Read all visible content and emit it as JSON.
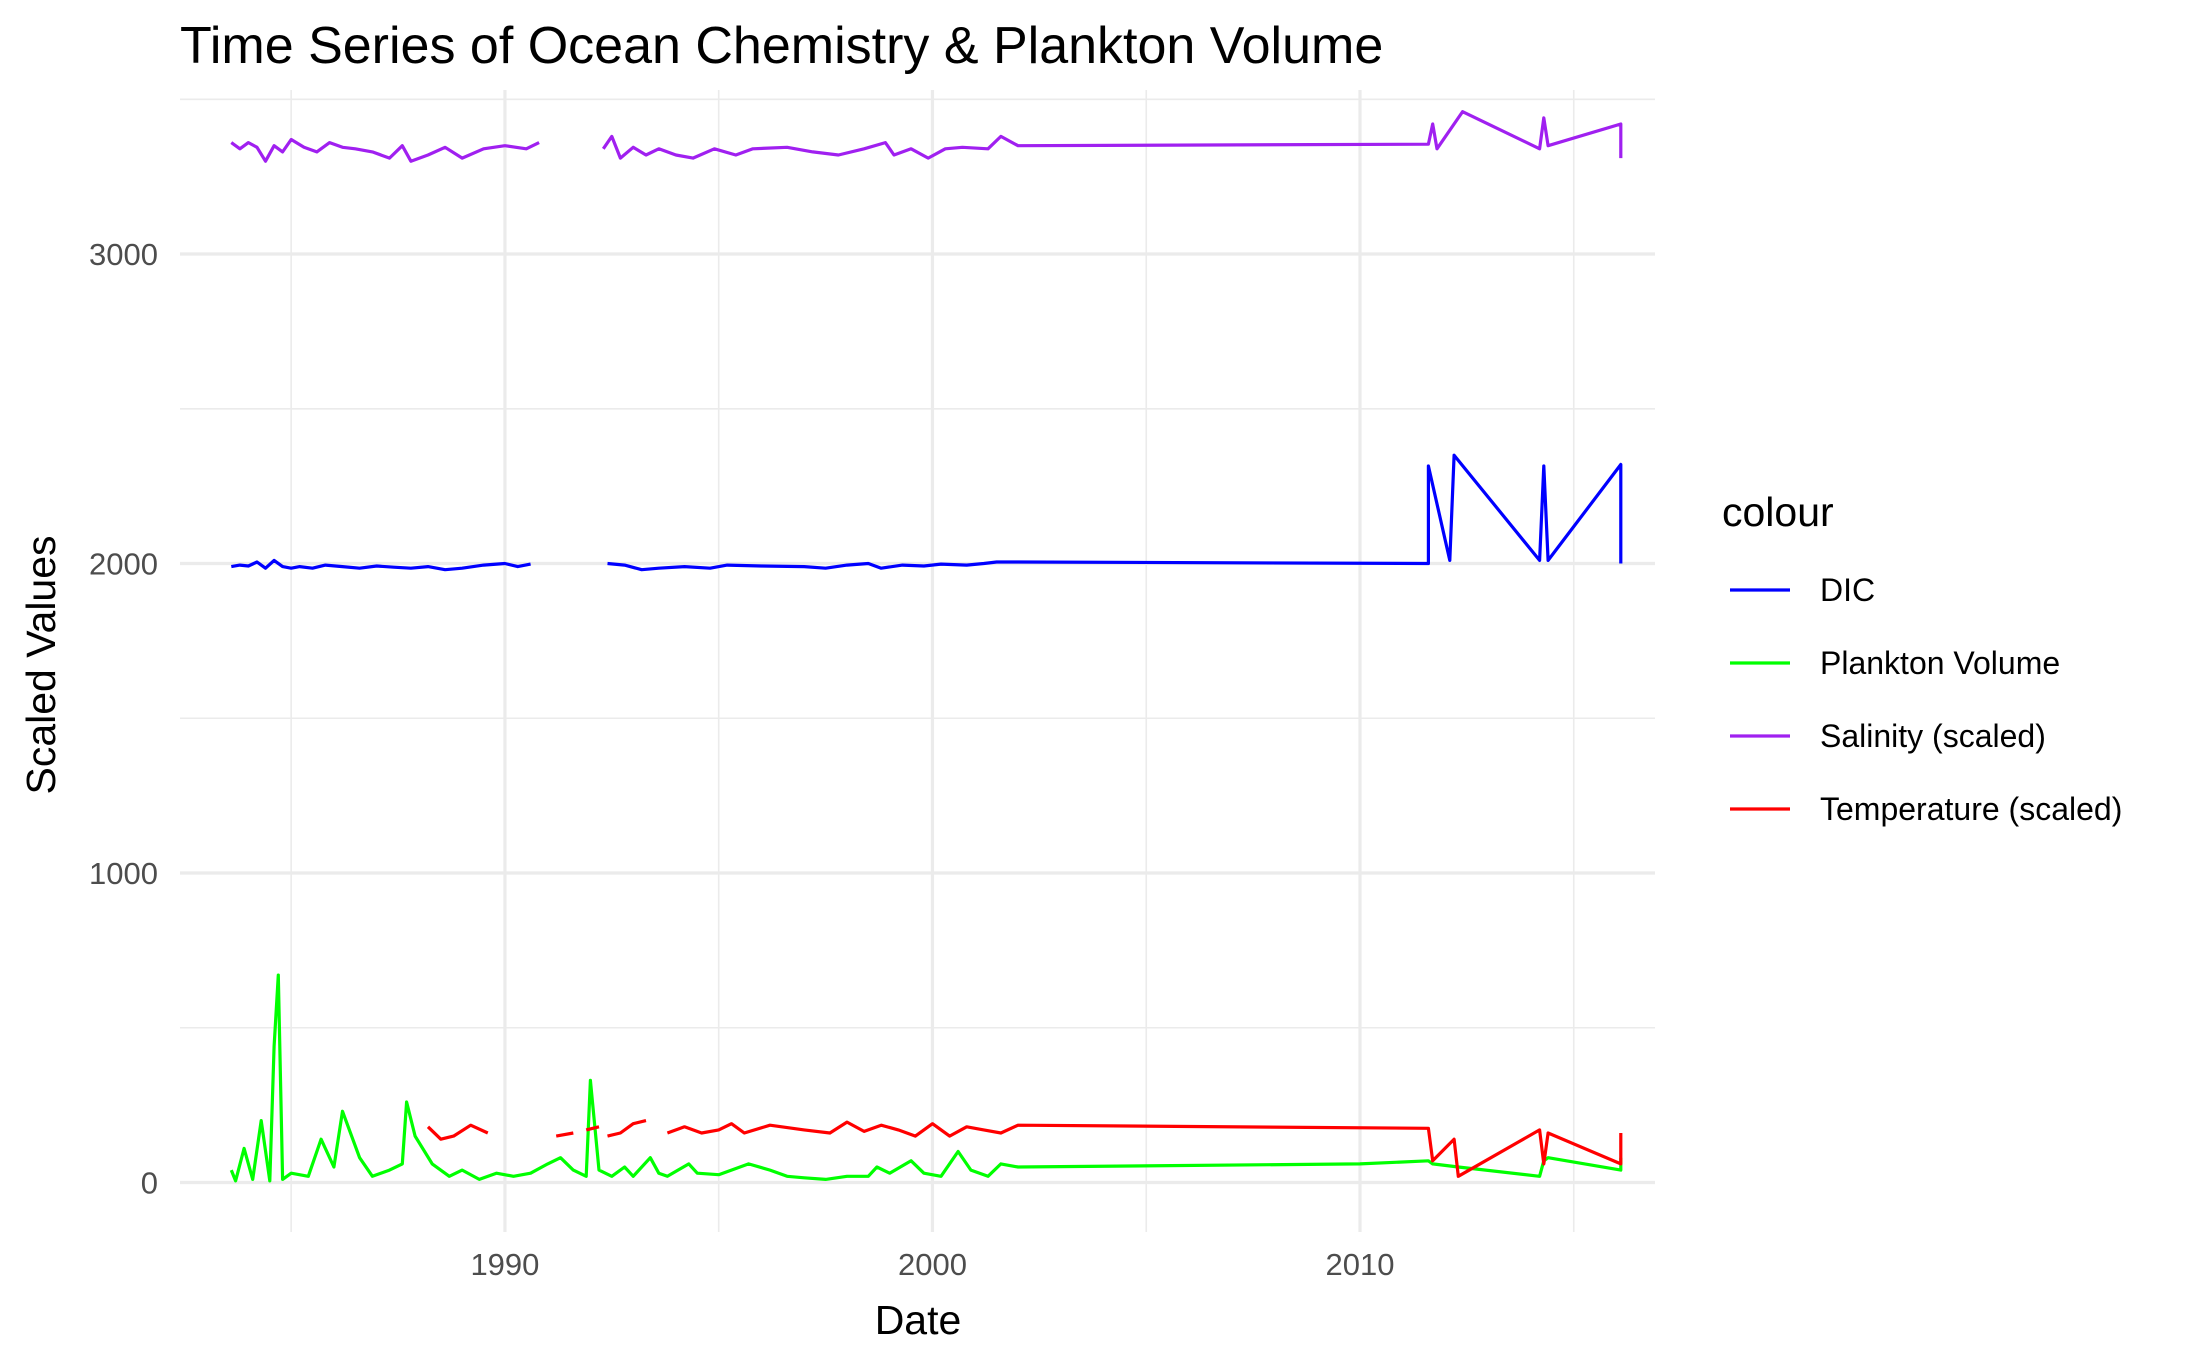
{
  "chart_data": {
    "type": "line",
    "title": "Time Series of Ocean Chemistry & Plankton Volume",
    "xlabel": "Date",
    "ylabel": "Scaled Values",
    "xlim": [
      1982.4,
      2016.9
    ],
    "ylim": [
      -160,
      3530
    ],
    "x_ticks": [
      1990,
      2000,
      2010
    ],
    "x_tick_labels": [
      "1990",
      "2000",
      "2010"
    ],
    "y_ticks": [
      0,
      1000,
      2000,
      3000
    ],
    "y_tick_labels": [
      "0",
      "1000",
      "2000",
      "3000"
    ],
    "grid": true,
    "legend": {
      "title": "colour",
      "position": "right"
    },
    "series": [
      {
        "name": "DIC",
        "color": "#0000ff",
        "segments": [
          [
            [
              1983.6,
              1990
            ],
            [
              1983.8,
              1995
            ],
            [
              1984.0,
              1992
            ],
            [
              1984.2,
              2005
            ],
            [
              1984.4,
              1985
            ],
            [
              1984.6,
              2010
            ],
            [
              1984.8,
              1990
            ],
            [
              1985.0,
              1985
            ],
            [
              1985.2,
              1990
            ],
            [
              1985.5,
              1985
            ],
            [
              1985.8,
              1995
            ],
            [
              1986.2,
              1990
            ],
            [
              1986.6,
              1985
            ],
            [
              1987.0,
              1992
            ],
            [
              1987.4,
              1988
            ],
            [
              1987.8,
              1985
            ],
            [
              1988.2,
              1990
            ],
            [
              1988.6,
              1980
            ],
            [
              1989.0,
              1985
            ],
            [
              1989.5,
              1995
            ],
            [
              1990.0,
              2000
            ],
            [
              1990.3,
              1990
            ],
            [
              1990.6,
              1998
            ]
          ],
          [
            [
              1992.4,
              2000
            ],
            [
              1992.8,
              1995
            ],
            [
              1993.2,
              1980
            ],
            [
              1993.6,
              1985
            ],
            [
              1994.2,
              1990
            ],
            [
              1994.8,
              1985
            ],
            [
              1995.2,
              1995
            ],
            [
              1996.0,
              1992
            ],
            [
              1997.0,
              1990
            ],
            [
              1997.5,
              1985
            ],
            [
              1998.0,
              1995
            ],
            [
              1998.5,
              2000
            ],
            [
              1998.8,
              1985
            ],
            [
              1999.3,
              1995
            ],
            [
              1999.8,
              1992
            ],
            [
              2000.2,
              1998
            ],
            [
              2000.8,
              1995
            ],
            [
              2001.2,
              2000
            ],
            [
              2001.5,
              2005
            ],
            [
              2002.0,
              2005
            ],
            [
              2011.6,
              2000
            ],
            [
              2011.6,
              2315
            ],
            [
              2012.1,
              2010
            ],
            [
              2012.2,
              2350
            ],
            [
              2014.2,
              2010
            ],
            [
              2014.3,
              2315
            ],
            [
              2014.4,
              2010
            ],
            [
              2016.1,
              2320
            ],
            [
              2016.1,
              2000
            ]
          ]
        ]
      },
      {
        "name": "Plankton Volume",
        "color": "#00ff00",
        "segments": [
          [
            [
              1983.6,
              40
            ],
            [
              1983.7,
              5
            ],
            [
              1983.9,
              110
            ],
            [
              1984.1,
              10
            ],
            [
              1984.3,
              200
            ],
            [
              1984.5,
              5
            ],
            [
              1984.6,
              440
            ],
            [
              1984.7,
              670
            ],
            [
              1984.8,
              10
            ],
            [
              1985.0,
              30
            ],
            [
              1985.4,
              20
            ],
            [
              1985.7,
              140
            ],
            [
              1986.0,
              50
            ],
            [
              1986.2,
              230
            ],
            [
              1986.6,
              80
            ],
            [
              1986.9,
              20
            ],
            [
              1987.3,
              40
            ],
            [
              1987.6,
              60
            ],
            [
              1987.7,
              260
            ],
            [
              1987.9,
              150
            ],
            [
              1988.3,
              60
            ],
            [
              1988.7,
              20
            ],
            [
              1989.0,
              40
            ],
            [
              1989.4,
              10
            ],
            [
              1989.8,
              30
            ],
            [
              1990.2,
              20
            ],
            [
              1990.6,
              30
            ],
            [
              1991.0,
              60
            ],
            [
              1991.3,
              80
            ],
            [
              1991.6,
              40
            ],
            [
              1991.9,
              20
            ],
            [
              1992.0,
              330
            ],
            [
              1992.2,
              40
            ],
            [
              1992.5,
              20
            ],
            [
              1992.8,
              50
            ],
            [
              1993.0,
              20
            ],
            [
              1993.4,
              80
            ],
            [
              1993.6,
              30
            ],
            [
              1993.8,
              20
            ],
            [
              1994.3,
              60
            ],
            [
              1994.5,
              30
            ],
            [
              1995.0,
              25
            ],
            [
              1995.7,
              60
            ],
            [
              1996.2,
              40
            ],
            [
              1996.6,
              20
            ],
            [
              1997.0,
              15
            ],
            [
              1997.5,
              10
            ],
            [
              1998.0,
              20
            ],
            [
              1998.5,
              20
            ],
            [
              1998.7,
              50
            ],
            [
              1999.0,
              30
            ],
            [
              1999.5,
              70
            ],
            [
              1999.8,
              30
            ],
            [
              2000.2,
              20
            ],
            [
              2000.6,
              100
            ],
            [
              2000.9,
              40
            ],
            [
              2001.3,
              20
            ],
            [
              2001.6,
              60
            ],
            [
              2002.0,
              50
            ],
            [
              2010.0,
              60
            ],
            [
              2011.6,
              70
            ],
            [
              2011.7,
              60
            ],
            [
              2012.3,
              50
            ],
            [
              2014.2,
              20
            ],
            [
              2014.3,
              70
            ],
            [
              2014.4,
              80
            ],
            [
              2016.1,
              40
            ],
            [
              2016.1,
              80
            ]
          ]
        ]
      },
      {
        "name": "Salinity (scaled)",
        "color": "#a020f0",
        "segments": [
          [
            [
              1983.6,
              3360
            ],
            [
              1983.8,
              3340
            ],
            [
              1984.0,
              3360
            ],
            [
              1984.2,
              3345
            ],
            [
              1984.4,
              3300
            ],
            [
              1984.6,
              3350
            ],
            [
              1984.8,
              3330
            ],
            [
              1985.0,
              3370
            ],
            [
              1985.3,
              3345
            ],
            [
              1985.6,
              3330
            ],
            [
              1985.9,
              3360
            ],
            [
              1986.2,
              3345
            ],
            [
              1986.5,
              3340
            ],
            [
              1986.9,
              3330
            ],
            [
              1987.3,
              3310
            ],
            [
              1987.6,
              3350
            ],
            [
              1987.8,
              3300
            ],
            [
              1988.2,
              3320
            ],
            [
              1988.6,
              3345
            ],
            [
              1989.0,
              3310
            ],
            [
              1989.5,
              3340
            ],
            [
              1990.0,
              3350
            ],
            [
              1990.5,
              3340
            ],
            [
              1990.8,
              3360
            ]
          ],
          [
            [
              1992.3,
              3340
            ],
            [
              1992.5,
              3380
            ],
            [
              1992.7,
              3310
            ],
            [
              1993.0,
              3345
            ],
            [
              1993.3,
              3320
            ],
            [
              1993.6,
              3340
            ],
            [
              1994.0,
              3320
            ],
            [
              1994.4,
              3310
            ],
            [
              1994.9,
              3340
            ],
            [
              1995.4,
              3320
            ],
            [
              1995.8,
              3340
            ],
            [
              1996.6,
              3345
            ],
            [
              1997.2,
              3330
            ],
            [
              1997.8,
              3320
            ],
            [
              1998.4,
              3340
            ],
            [
              1998.9,
              3360
            ],
            [
              1999.1,
              3320
            ],
            [
              1999.5,
              3340
            ],
            [
              1999.9,
              3310
            ],
            [
              2000.3,
              3340
            ],
            [
              2000.7,
              3345
            ],
            [
              2001.3,
              3340
            ],
            [
              2001.6,
              3380
            ],
            [
              2002.0,
              3350
            ],
            [
              2011.6,
              3355
            ],
            [
              2011.7,
              3420
            ],
            [
              2011.8,
              3340
            ],
            [
              2012.3,
              3440
            ],
            [
              2012.4,
              3460
            ],
            [
              2014.2,
              3340
            ],
            [
              2014.3,
              3440
            ],
            [
              2014.4,
              3350
            ],
            [
              2016.1,
              3420
            ],
            [
              2016.1,
              3310
            ]
          ]
        ]
      },
      {
        "name": "Temperature (scaled)",
        "color": "#ff0000",
        "segments": [
          [
            [
              1988.2,
              180
            ],
            [
              1988.5,
              140
            ],
            [
              1988.8,
              150
            ],
            [
              1989.2,
              185
            ],
            [
              1989.6,
              160
            ]
          ],
          [
            [
              1991.2,
              150
            ],
            [
              1991.6,
              160
            ]
          ],
          [
            [
              1991.9,
              170
            ],
            [
              1992.2,
              180
            ]
          ],
          [
            [
              1992.4,
              150
            ],
            [
              1992.7,
              160
            ],
            [
              1993.0,
              190
            ],
            [
              1993.3,
              200
            ]
          ],
          [
            [
              1993.8,
              160
            ],
            [
              1994.2,
              180
            ],
            [
              1994.6,
              160
            ],
            [
              1995.0,
              170
            ],
            [
              1995.3,
              190
            ],
            [
              1995.6,
              160
            ],
            [
              1996.2,
              185
            ],
            [
              1997.0,
              170
            ],
            [
              1997.6,
              160
            ],
            [
              1998.0,
              195
            ],
            [
              1998.4,
              165
            ],
            [
              1998.8,
              185
            ],
            [
              1999.2,
              170
            ],
            [
              1999.6,
              150
            ],
            [
              2000.0,
              190
            ],
            [
              2000.4,
              150
            ],
            [
              2000.8,
              180
            ],
            [
              2001.2,
              170
            ],
            [
              2001.6,
              160
            ],
            [
              2002.0,
              185
            ],
            [
              2011.6,
              175
            ],
            [
              2011.7,
              70
            ],
            [
              2012.2,
              140
            ],
            [
              2012.3,
              20
            ],
            [
              2014.2,
              170
            ],
            [
              2014.3,
              60
            ],
            [
              2014.4,
              160
            ],
            [
              2016.1,
              60
            ],
            [
              2016.1,
              160
            ]
          ]
        ]
      }
    ]
  }
}
